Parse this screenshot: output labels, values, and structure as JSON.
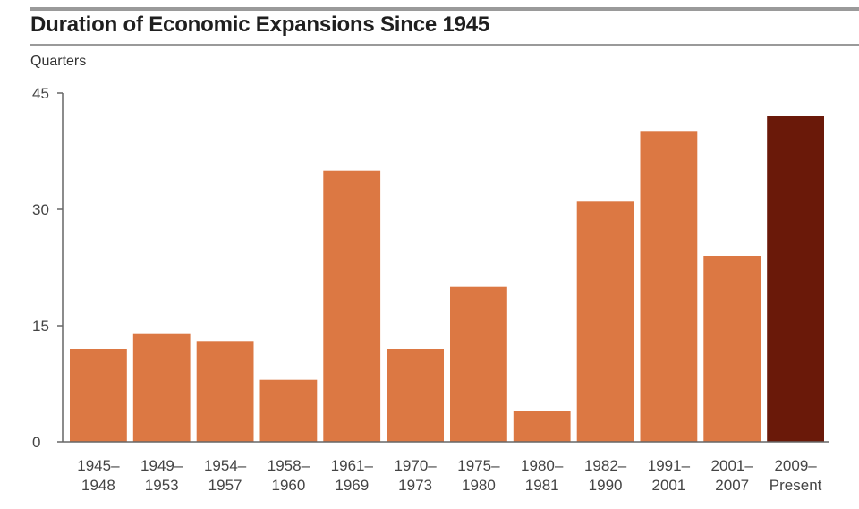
{
  "chart_data": {
    "type": "bar",
    "title": "Duration of Economic Expansions Since 1945",
    "ylabel": "Quarters",
    "xlabel": "",
    "ylim": [
      0,
      45
    ],
    "yticks": [
      0,
      15,
      30,
      45
    ],
    "categories": [
      [
        "1945–",
        "1948"
      ],
      [
        "1949–",
        "1953"
      ],
      [
        "1954–",
        "1957"
      ],
      [
        "1958–",
        "1960"
      ],
      [
        "1961–",
        "1969"
      ],
      [
        "1970–",
        "1973"
      ],
      [
        "1975–",
        "1980"
      ],
      [
        "1980–",
        "1981"
      ],
      [
        "1982–",
        "1990"
      ],
      [
        "1991–",
        "2001"
      ],
      [
        "2001–",
        "2007"
      ],
      [
        "2009–",
        "Present"
      ]
    ],
    "values": [
      12,
      14,
      13,
      8,
      35,
      12,
      20,
      4,
      31,
      40,
      24,
      42
    ],
    "highlight_index": 11,
    "colors": {
      "bar": "#dc7843",
      "highlight": "#6a1909",
      "axis": "#666666"
    }
  }
}
